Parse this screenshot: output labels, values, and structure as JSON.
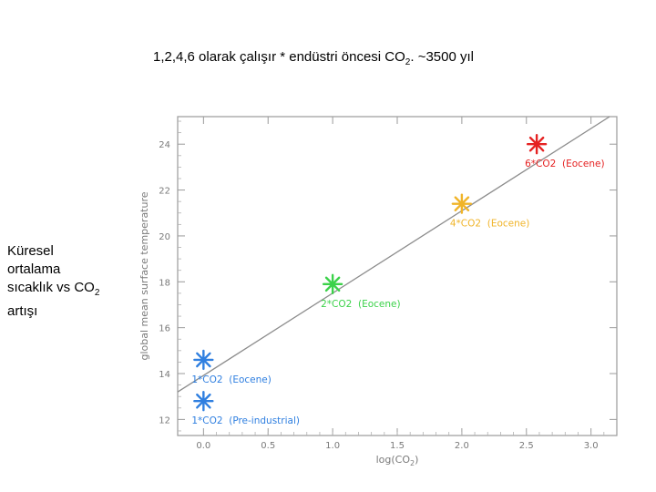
{
  "slide": {
    "title_main": "1,2,4,6 olarak çalışır * endüstri öncesi CO",
    "title_sub": "2",
    "title_tail": ". ~3500 yıl",
    "side_line1": "Küresel",
    "side_line2": "ortalama",
    "side_line3": "sıcaklık vs CO",
    "side_line3_sub": "2",
    "side_line4": "artışı"
  },
  "chart_data": {
    "type": "scatter",
    "xlabel": "log(CO",
    "xlabel_sub": "2",
    "xlabel_tail": ")",
    "ylabel": "global mean surface temperature",
    "xlim": [
      -0.2,
      3.2
    ],
    "ylim": [
      11.3,
      25.2
    ],
    "xticks": [
      0.0,
      0.5,
      1.0,
      1.5,
      2.0,
      2.5,
      3.0
    ],
    "xtick_labels": [
      "0.0",
      "0.5",
      "1.0",
      "1.5",
      "2.0",
      "2.5",
      "3.0"
    ],
    "yticks": [
      12,
      14,
      16,
      18,
      20,
      22,
      24
    ],
    "ytick_labels": [
      "12",
      "14",
      "16",
      "18",
      "20",
      "22",
      "24"
    ],
    "grid": false,
    "fit_line": {
      "x": [
        -0.2,
        3.2
      ],
      "y": [
        13.2,
        25.4
      ],
      "color": "#8c8c8c"
    },
    "points": [
      {
        "x": 0.0,
        "y": 12.8,
        "label": "1*CO2  (Pre-industrial)",
        "color": "#2f7fe0"
      },
      {
        "x": 0.0,
        "y": 14.6,
        "label": "1*CO2  (Eocene)",
        "color": "#2f7fe0"
      },
      {
        "x": 1.0,
        "y": 17.9,
        "label": "2*CO2  (Eocene)",
        "color": "#3cd24a"
      },
      {
        "x": 2.0,
        "y": 21.4,
        "label": "4*CO2  (Eocene)",
        "color": "#f0b429"
      },
      {
        "x": 2.58,
        "y": 24.0,
        "label": "6*CO2  (Eocene)",
        "color": "#e52222"
      }
    ]
  }
}
